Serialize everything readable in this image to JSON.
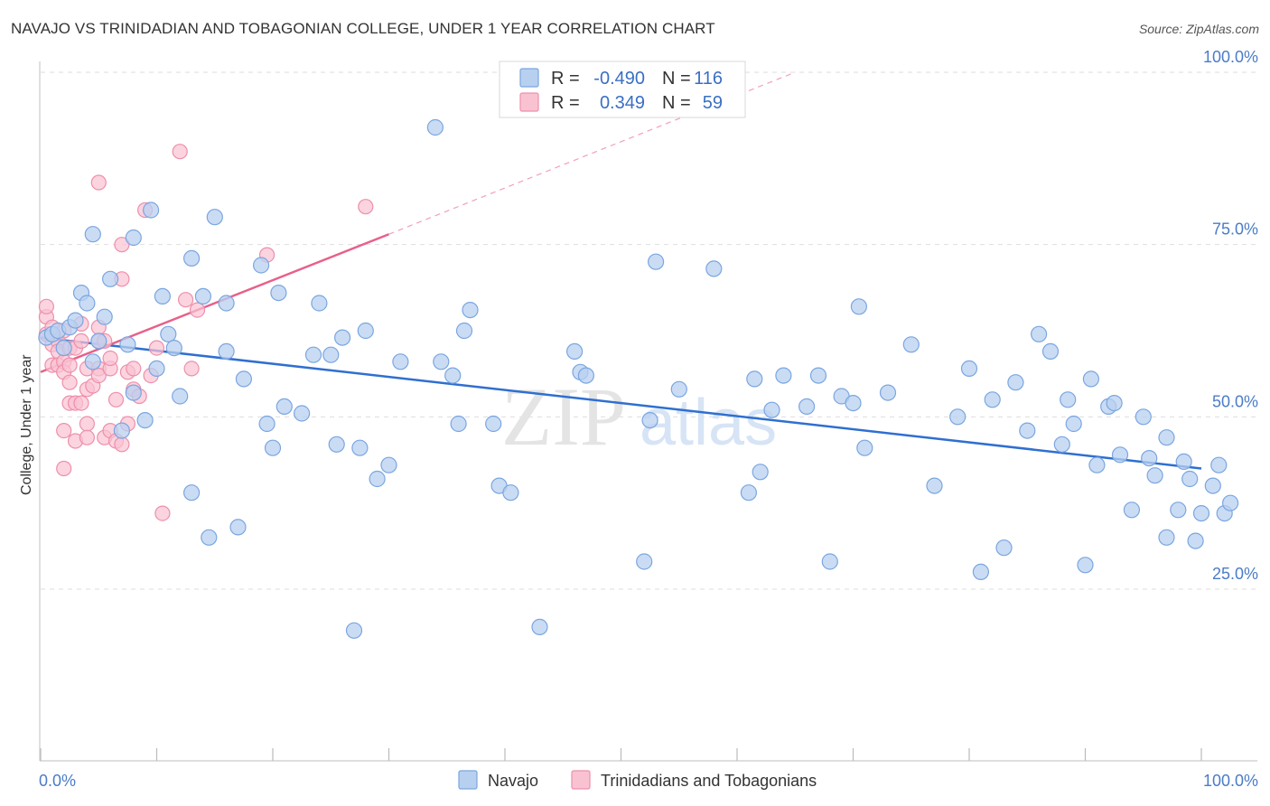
{
  "title": "NAVAJO VS TRINIDADIAN AND TOBAGONIAN COLLEGE, UNDER 1 YEAR CORRELATION CHART",
  "source": "Source: ZipAtlas.com",
  "colors": {
    "navajo_fill": "#b8d0f0",
    "navajo_stroke": "#7aa6e0",
    "navajo_line": "#2f6fd0",
    "trini_fill": "#f9c2d2",
    "trini_stroke": "#ee8fab",
    "trini_line": "#e8608a",
    "grid": "#dddddd",
    "axis_text": "#4a7cc7"
  },
  "legend_box": {
    "rows": [
      {
        "r_label": "R =",
        "r_value": "-0.490",
        "n_label": "N =",
        "n_value": "116"
      },
      {
        "r_label": "R =",
        "r_value": "0.349",
        "n_label": "N =",
        "n_value": "59"
      }
    ]
  },
  "watermark": {
    "zip": "ZIP",
    "atlas": "atlas"
  },
  "chart_data": {
    "type": "scatter",
    "xlabel": "",
    "ylabel": "College, Under 1 year",
    "xlim": [
      0,
      100
    ],
    "ylim": [
      0,
      105
    ],
    "x_tick_labels": [
      "0.0%",
      "100.0%"
    ],
    "y_ticks": [
      25,
      50,
      75,
      100
    ],
    "y_tick_labels": [
      "25.0%",
      "50.0%",
      "75.0%",
      "100.0%"
    ],
    "grid": true,
    "legend_position": "bottom-center",
    "series": [
      {
        "name": "Navajo",
        "trend": {
          "x": [
            0,
            100
          ],
          "y": [
            61.5,
            42.5
          ],
          "dashed_extension": false
        },
        "points": [
          [
            0.5,
            61.5
          ],
          [
            1,
            62
          ],
          [
            1.5,
            62.5
          ],
          [
            2,
            60
          ],
          [
            2.5,
            63
          ],
          [
            3,
            64
          ],
          [
            3.5,
            68
          ],
          [
            4,
            66.5
          ],
          [
            4.5,
            58
          ],
          [
            5,
            61
          ],
          [
            5.5,
            64.5
          ],
          [
            6,
            70
          ],
          [
            4.5,
            76.5
          ],
          [
            7,
            48
          ],
          [
            7.5,
            60.5
          ],
          [
            8,
            76
          ],
          [
            8,
            53.5
          ],
          [
            9,
            49.5
          ],
          [
            9.5,
            80
          ],
          [
            10,
            57
          ],
          [
            10.5,
            67.5
          ],
          [
            11,
            62
          ],
          [
            11.5,
            60
          ],
          [
            12,
            53
          ],
          [
            13,
            39
          ],
          [
            13,
            73
          ],
          [
            14,
            67.5
          ],
          [
            14.5,
            32.5
          ],
          [
            15,
            79
          ],
          [
            16,
            66.5
          ],
          [
            16,
            59.5
          ],
          [
            17,
            34
          ],
          [
            17.5,
            55.5
          ],
          [
            19,
            72
          ],
          [
            19.5,
            49
          ],
          [
            20,
            45.5
          ],
          [
            20.5,
            68
          ],
          [
            21,
            51.5
          ],
          [
            22.5,
            50.5
          ],
          [
            23.5,
            59
          ],
          [
            24,
            66.5
          ],
          [
            25,
            59
          ],
          [
            25.5,
            46
          ],
          [
            26,
            61.5
          ],
          [
            27,
            19
          ],
          [
            27.5,
            45.5
          ],
          [
            28,
            62.5
          ],
          [
            29,
            41
          ],
          [
            30,
            43
          ],
          [
            31,
            58
          ],
          [
            34,
            92
          ],
          [
            34.5,
            58
          ],
          [
            35.5,
            56
          ],
          [
            36,
            49
          ],
          [
            36.5,
            62.5
          ],
          [
            37,
            65.5
          ],
          [
            39,
            49
          ],
          [
            39.5,
            40
          ],
          [
            40.5,
            39
          ],
          [
            43,
            19.5
          ],
          [
            46,
            59.5
          ],
          [
            46.5,
            56.5
          ],
          [
            47,
            56
          ],
          [
            52,
            29
          ],
          [
            52.5,
            49.5
          ],
          [
            53,
            72.5
          ],
          [
            55,
            54
          ],
          [
            58,
            71.5
          ],
          [
            61,
            39
          ],
          [
            61.5,
            55.5
          ],
          [
            62,
            42
          ],
          [
            63,
            51
          ],
          [
            64,
            56
          ],
          [
            66,
            51.5
          ],
          [
            67,
            56
          ],
          [
            68,
            29
          ],
          [
            69,
            53
          ],
          [
            70,
            52
          ],
          [
            70.5,
            66
          ],
          [
            71,
            45.5
          ],
          [
            73,
            53.5
          ],
          [
            75,
            60.5
          ],
          [
            77,
            40
          ],
          [
            79,
            50
          ],
          [
            80,
            57
          ],
          [
            81,
            27.5
          ],
          [
            82,
            52.5
          ],
          [
            83,
            31
          ],
          [
            84,
            55
          ],
          [
            85,
            48
          ],
          [
            86,
            62
          ],
          [
            87,
            59.5
          ],
          [
            88,
            46
          ],
          [
            88.5,
            52.5
          ],
          [
            89,
            49
          ],
          [
            90,
            28.5
          ],
          [
            90.5,
            55.5
          ],
          [
            91,
            43
          ],
          [
            92,
            51.5
          ],
          [
            92.5,
            52
          ],
          [
            93,
            44.5
          ],
          [
            94,
            36.5
          ],
          [
            95,
            50
          ],
          [
            95.5,
            44
          ],
          [
            96,
            41.5
          ],
          [
            97,
            47
          ],
          [
            97,
            32.5
          ],
          [
            98,
            36.5
          ],
          [
            98.5,
            43.5
          ],
          [
            99,
            41
          ],
          [
            99.5,
            32
          ],
          [
            100,
            36
          ],
          [
            101,
            40
          ],
          [
            101.5,
            43
          ],
          [
            102,
            36
          ],
          [
            102.5,
            37.5
          ]
        ]
      },
      {
        "name": "Trinidadians and Tobagonians",
        "trend": {
          "x": [
            0,
            30
          ],
          "y": [
            56.5,
            76.5
          ],
          "dashed_extension": true,
          "dash_x": [
            30,
            65
          ],
          "dash_y": [
            76.5,
            100
          ]
        },
        "points": [
          [
            0.5,
            62
          ],
          [
            0.5,
            64.5
          ],
          [
            0.5,
            66
          ],
          [
            1,
            60.5
          ],
          [
            1,
            63
          ],
          [
            1,
            57.5
          ],
          [
            1.5,
            61
          ],
          [
            1.5,
            59.5
          ],
          [
            1.5,
            57.5
          ],
          [
            2,
            62.5
          ],
          [
            2,
            58
          ],
          [
            2,
            56.5
          ],
          [
            2.5,
            60
          ],
          [
            2.5,
            57.5
          ],
          [
            2.5,
            55
          ],
          [
            2,
            42.5
          ],
          [
            2,
            48
          ],
          [
            2.5,
            52
          ],
          [
            3,
            46.5
          ],
          [
            3,
            60
          ],
          [
            3,
            52
          ],
          [
            3.5,
            63.5
          ],
          [
            3.5,
            61
          ],
          [
            3.5,
            52
          ],
          [
            4,
            57
          ],
          [
            4,
            54
          ],
          [
            4,
            49
          ],
          [
            4.5,
            54.5
          ],
          [
            4,
            47
          ],
          [
            5,
            57
          ],
          [
            5,
            61
          ],
          [
            5,
            56
          ],
          [
            5,
            63
          ],
          [
            5,
            84
          ],
          [
            5.5,
            47
          ],
          [
            5.5,
            61
          ],
          [
            6,
            57
          ],
          [
            6,
            48
          ],
          [
            6,
            58.5
          ],
          [
            6.5,
            46.5
          ],
          [
            6.5,
            52.5
          ],
          [
            7,
            70
          ],
          [
            7,
            75
          ],
          [
            7,
            46
          ],
          [
            7.5,
            56.5
          ],
          [
            7.5,
            49
          ],
          [
            8,
            57
          ],
          [
            8,
            54
          ],
          [
            8.5,
            53
          ],
          [
            9,
            80
          ],
          [
            9.5,
            56
          ],
          [
            10,
            60
          ],
          [
            10.5,
            36
          ],
          [
            12,
            88.5
          ],
          [
            12.5,
            67
          ],
          [
            13,
            57
          ],
          [
            13.5,
            65.5
          ],
          [
            19.5,
            73.5
          ],
          [
            28,
            80.5
          ]
        ]
      }
    ]
  }
}
